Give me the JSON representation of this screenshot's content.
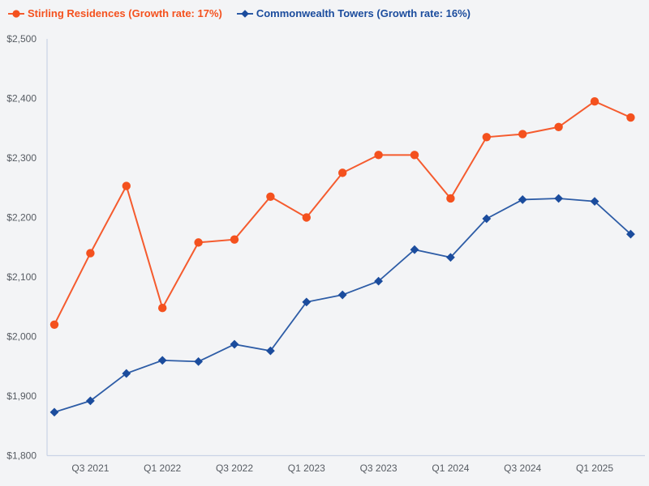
{
  "page": {
    "background": "#f3f4f6"
  },
  "chart_data": {
    "type": "line",
    "title": "",
    "xlabel": "",
    "ylabel": "",
    "grid": false,
    "legend_position": "top-left",
    "ylim": [
      1800,
      2500
    ],
    "num_points": 17,
    "axis_color": "#c9d3e6",
    "tick_text_color": "#565b62",
    "y_ticks": [
      {
        "label": "$2,500",
        "value": 2500
      },
      {
        "label": "$2,400",
        "value": 2400
      },
      {
        "label": "$2,300",
        "value": 2300
      },
      {
        "label": "$2,200",
        "value": 2200
      },
      {
        "label": "$2,100",
        "value": 2100
      },
      {
        "label": "$2,000",
        "value": 2000
      },
      {
        "label": "$1,900",
        "value": 1900
      },
      {
        "label": "$1,800",
        "value": 1800
      }
    ],
    "x_ticks": [
      {
        "label": "Q3 2021",
        "point_index": 1
      },
      {
        "label": "Q1 2022",
        "point_index": 3
      },
      {
        "label": "Q3 2022",
        "point_index": 5
      },
      {
        "label": "Q1 2023",
        "point_index": 7
      },
      {
        "label": "Q3 2023",
        "point_index": 9
      },
      {
        "label": "Q1 2024",
        "point_index": 11
      },
      {
        "label": "Q3 2024",
        "point_index": 13
      },
      {
        "label": "Q1 2025",
        "point_index": 15
      }
    ],
    "series": [
      {
        "name": "Stirling Residences (Growth rate: 17%)",
        "marker": "circle",
        "marker_color": "#f4511e",
        "line_color": "#f55b2e",
        "text_color": "#f4511e",
        "values": [
          2020,
          2140,
          2253,
          2048,
          2158,
          2163,
          2235,
          2200,
          2275,
          2305,
          2305,
          2232,
          2335,
          2340,
          2352,
          2395,
          2368
        ]
      },
      {
        "name": "Commonwealth Towers (Growth rate: 16%)",
        "marker": "diamond",
        "marker_color": "#1b4c9d",
        "line_color": "#2d5ca6",
        "text_color": "#1b4c9d",
        "values": [
          1873,
          1892,
          1938,
          1960,
          1958,
          1987,
          1976,
          2058,
          2070,
          2093,
          2146,
          2133,
          2198,
          2230,
          2232,
          2227,
          2172
        ]
      }
    ]
  }
}
